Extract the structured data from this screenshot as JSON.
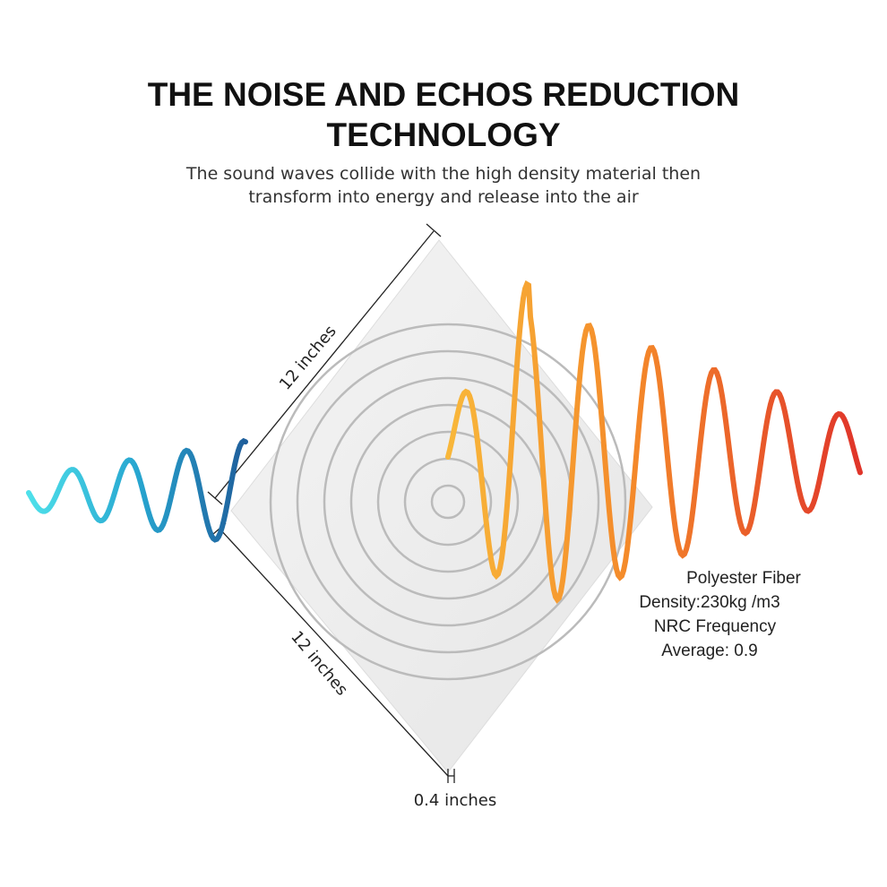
{
  "header": {
    "title": [
      "THE NOISE AND ECHOS REDUCTION",
      "TECHNOLOGY"
    ],
    "subtitle": [
      "The sound waves collide with the high density material then",
      "transform into energy and release into the air"
    ]
  },
  "dimensions": {
    "top_edge": "12 inches",
    "bottom_edge": "12 inches",
    "thickness": "0.4 inches"
  },
  "specs": [
    "Polyester Fiber",
    "Density:230kg /m3",
    "NRC Frequency",
    "Average: 0.9"
  ]
}
